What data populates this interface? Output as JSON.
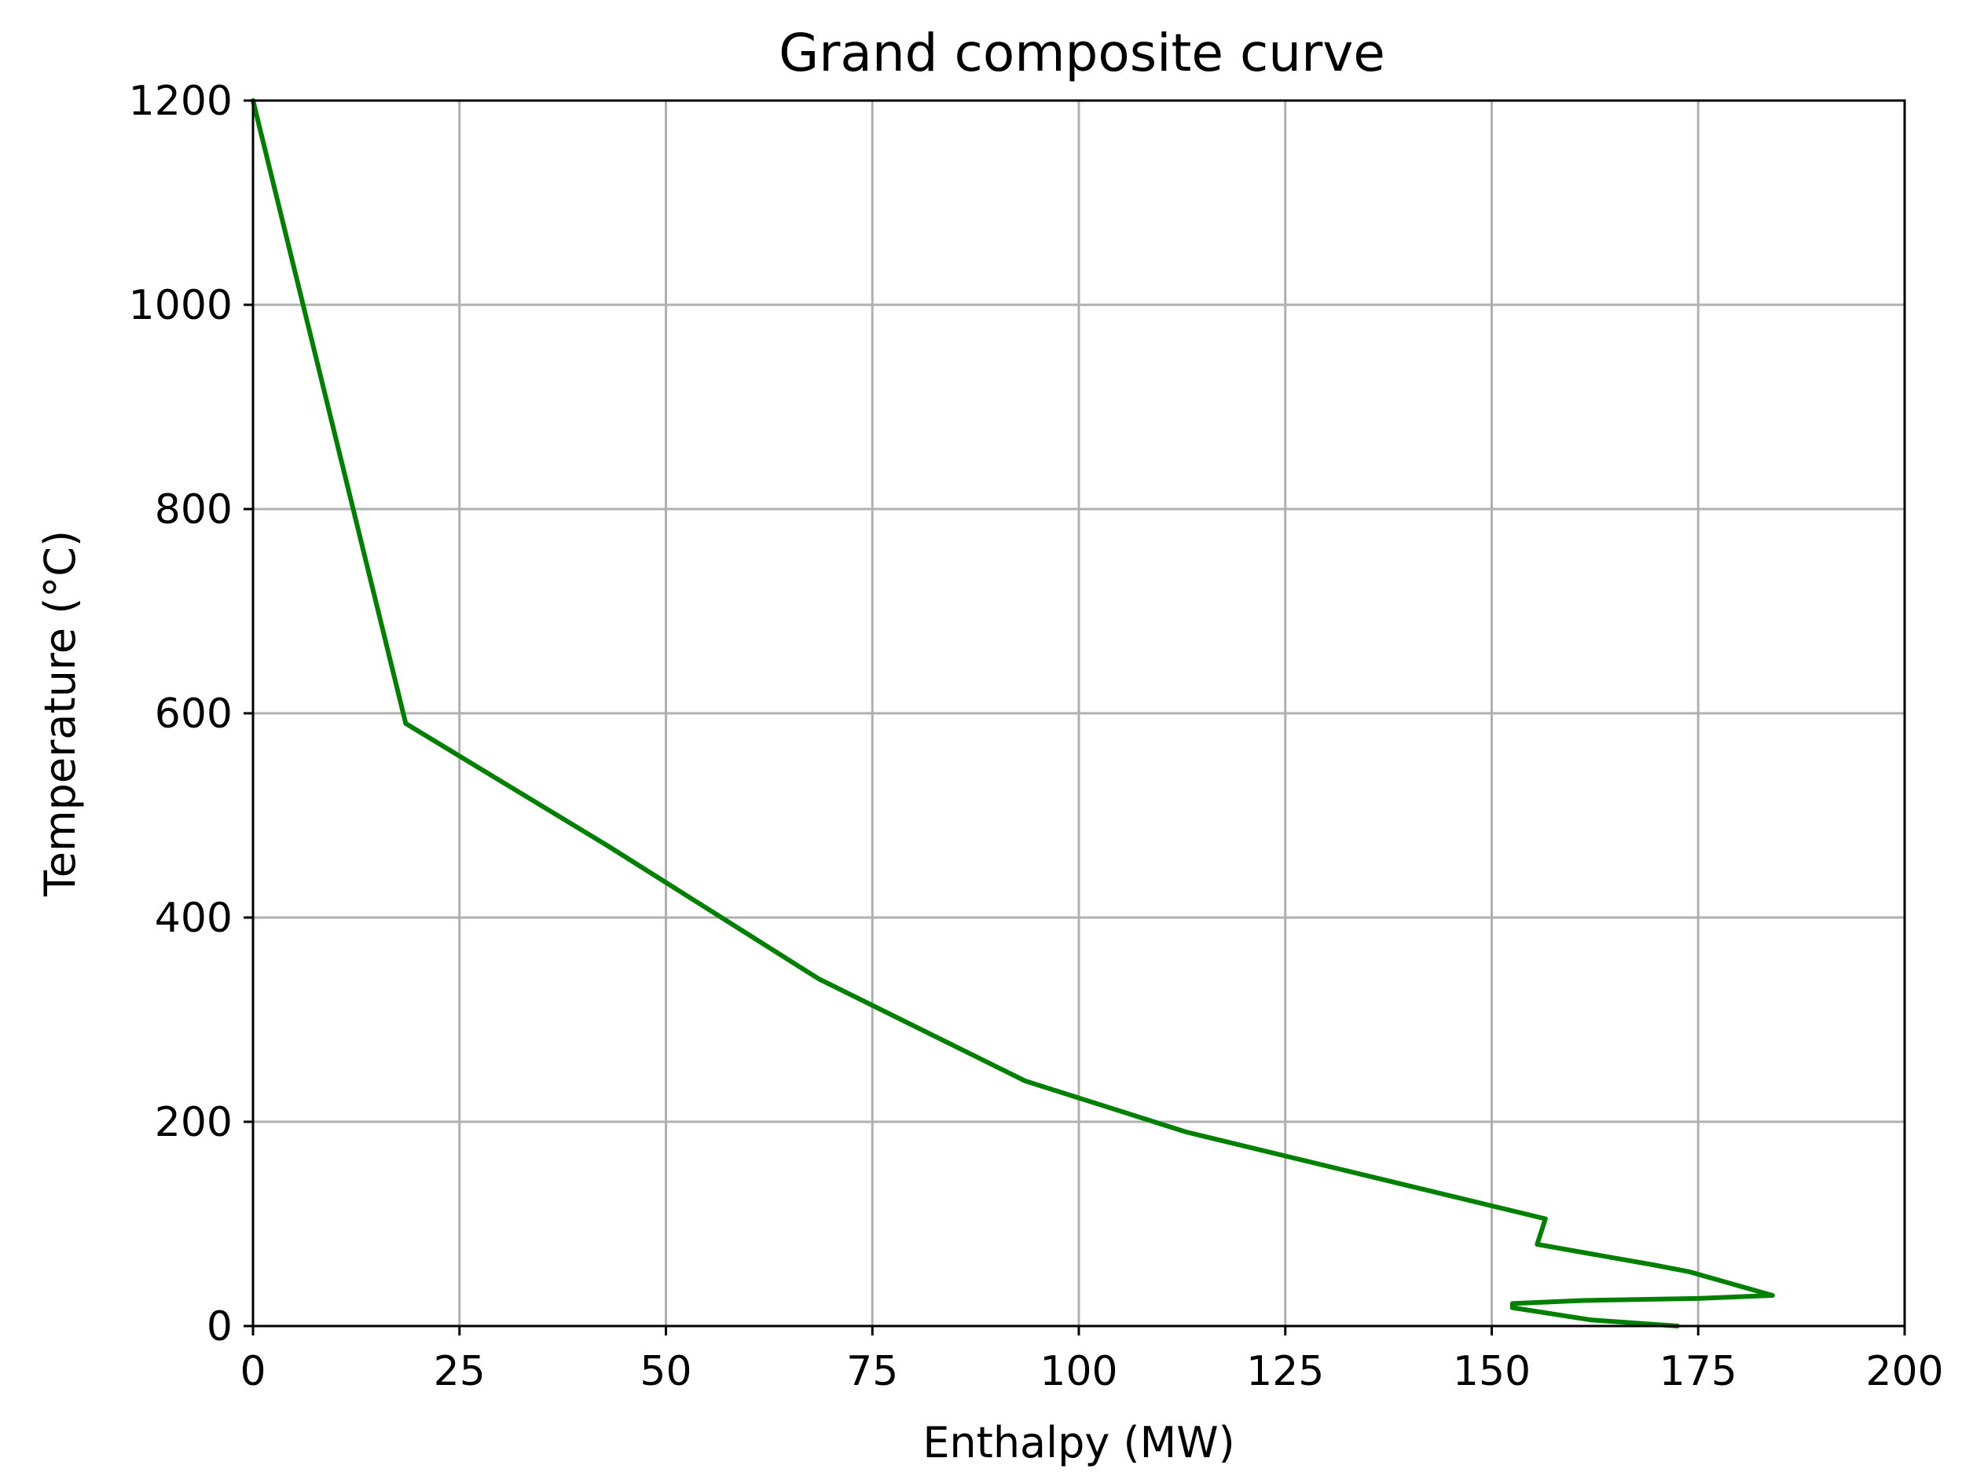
{
  "chart_data": {
    "type": "line",
    "title": "Grand composite curve",
    "xlabel": "Enthalpy (MW)",
    "ylabel": "Temperature (°C)",
    "xlim": [
      0,
      200
    ],
    "ylim": [
      0,
      1200
    ],
    "xticks": [
      "0",
      "25",
      "50",
      "75",
      "100",
      "125",
      "150",
      "175",
      "200"
    ],
    "yticks": [
      "0",
      "200",
      "400",
      "600",
      "800",
      "1000",
      "1200"
    ],
    "grid": true,
    "legend": "none",
    "series": [
      {
        "color": "#008000",
        "x": [
          0,
          18.5,
          43,
          68.5,
          93.5,
          113,
          156.5,
          155.5,
          169.5,
          174,
          184,
          175,
          161,
          152.5,
          152.5,
          162,
          172.5
        ],
        "y": [
          1200,
          590,
          470,
          340,
          240,
          190,
          105,
          80,
          60,
          53,
          30,
          27,
          25,
          22,
          18,
          6,
          0
        ]
      }
    ]
  }
}
